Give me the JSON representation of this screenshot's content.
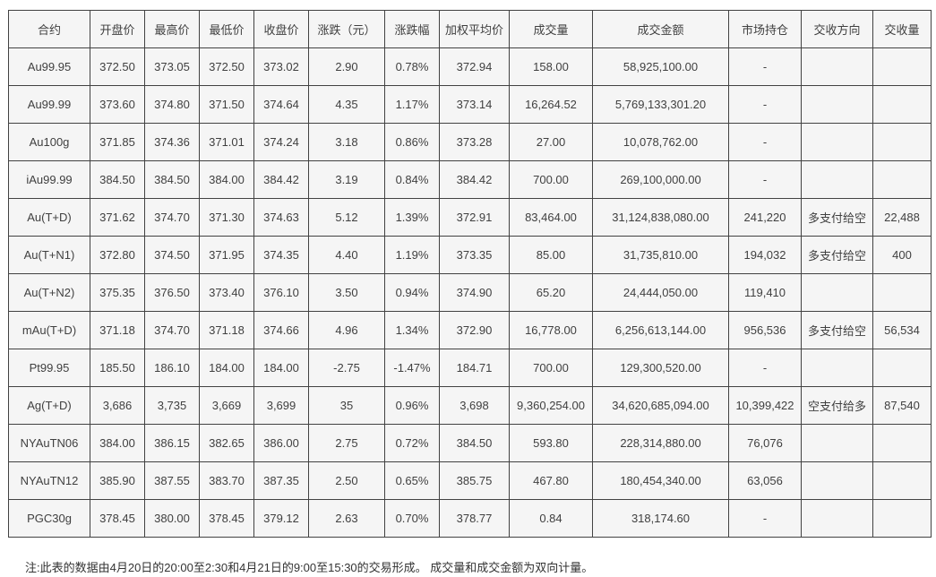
{
  "colors": {
    "cell_background": "#f5f5f5",
    "grid_border": "#424242",
    "text": "#404040",
    "page_background": "#ffffff"
  },
  "table": {
    "headers": [
      "合约",
      "开盘价",
      "最高价",
      "最低价",
      "收盘价",
      "涨跌（元）",
      "涨跌幅",
      "加权平均价",
      "成交量",
      "成交金额",
      "市场持仓",
      "交收方向",
      "交收量"
    ],
    "rows": [
      [
        "Au99.95",
        "372.50",
        "373.05",
        "372.50",
        "373.02",
        "2.90",
        "0.78%",
        "372.94",
        "158.00",
        "58,925,100.00",
        "-",
        "",
        ""
      ],
      [
        "Au99.99",
        "373.60",
        "374.80",
        "371.50",
        "374.64",
        "4.35",
        "1.17%",
        "373.14",
        "16,264.52",
        "5,769,133,301.20",
        "-",
        "",
        ""
      ],
      [
        "Au100g",
        "371.85",
        "374.36",
        "371.01",
        "374.24",
        "3.18",
        "0.86%",
        "373.28",
        "27.00",
        "10,078,762.00",
        "-",
        "",
        ""
      ],
      [
        "iAu99.99",
        "384.50",
        "384.50",
        "384.00",
        "384.42",
        "3.19",
        "0.84%",
        "384.42",
        "700.00",
        "269,100,000.00",
        "-",
        "",
        ""
      ],
      [
        "Au(T+D)",
        "371.62",
        "374.70",
        "371.30",
        "374.63",
        "5.12",
        "1.39%",
        "372.91",
        "83,464.00",
        "31,124,838,080.00",
        "241,220",
        "多支付给空",
        "22,488"
      ],
      [
        "Au(T+N1)",
        "372.80",
        "374.50",
        "371.95",
        "374.35",
        "4.40",
        "1.19%",
        "373.35",
        "85.00",
        "31,735,810.00",
        "194,032",
        "多支付给空",
        "400"
      ],
      [
        "Au(T+N2)",
        "375.35",
        "376.50",
        "373.40",
        "376.10",
        "3.50",
        "0.94%",
        "374.90",
        "65.20",
        "24,444,050.00",
        "119,410",
        "",
        ""
      ],
      [
        "mAu(T+D)",
        "371.18",
        "374.70",
        "371.18",
        "374.66",
        "4.96",
        "1.34%",
        "372.90",
        "16,778.00",
        "6,256,613,144.00",
        "956,536",
        "多支付给空",
        "56,534"
      ],
      [
        "Pt99.95",
        "185.50",
        "186.10",
        "184.00",
        "184.00",
        "-2.75",
        "-1.47%",
        "184.71",
        "700.00",
        "129,300,520.00",
        "-",
        "",
        ""
      ],
      [
        "Ag(T+D)",
        "3,686",
        "3,735",
        "3,669",
        "3,699",
        "35",
        "0.96%",
        "3,698",
        "9,360,254.00",
        "34,620,685,094.00",
        "10,399,422",
        "空支付给多",
        "87,540"
      ],
      [
        "NYAuTN06",
        "384.00",
        "386.15",
        "382.65",
        "386.00",
        "2.75",
        "0.72%",
        "384.50",
        "593.80",
        "228,314,880.00",
        "76,076",
        "",
        ""
      ],
      [
        "NYAuTN12",
        "385.90",
        "387.55",
        "383.70",
        "387.35",
        "2.50",
        "0.65%",
        "385.75",
        "467.80",
        "180,454,340.00",
        "63,056",
        "",
        ""
      ],
      [
        "PGC30g",
        "378.45",
        "380.00",
        "378.45",
        "379.12",
        "2.63",
        "0.70%",
        "378.77",
        "0.84",
        "318,174.60",
        "-",
        "",
        ""
      ]
    ]
  },
  "footer": {
    "note": "注:此表的数据由4月20日的20:00至2:30和4月21日的9:00至15:30的交易形成。 成交量和成交金额为双向计量。"
  }
}
